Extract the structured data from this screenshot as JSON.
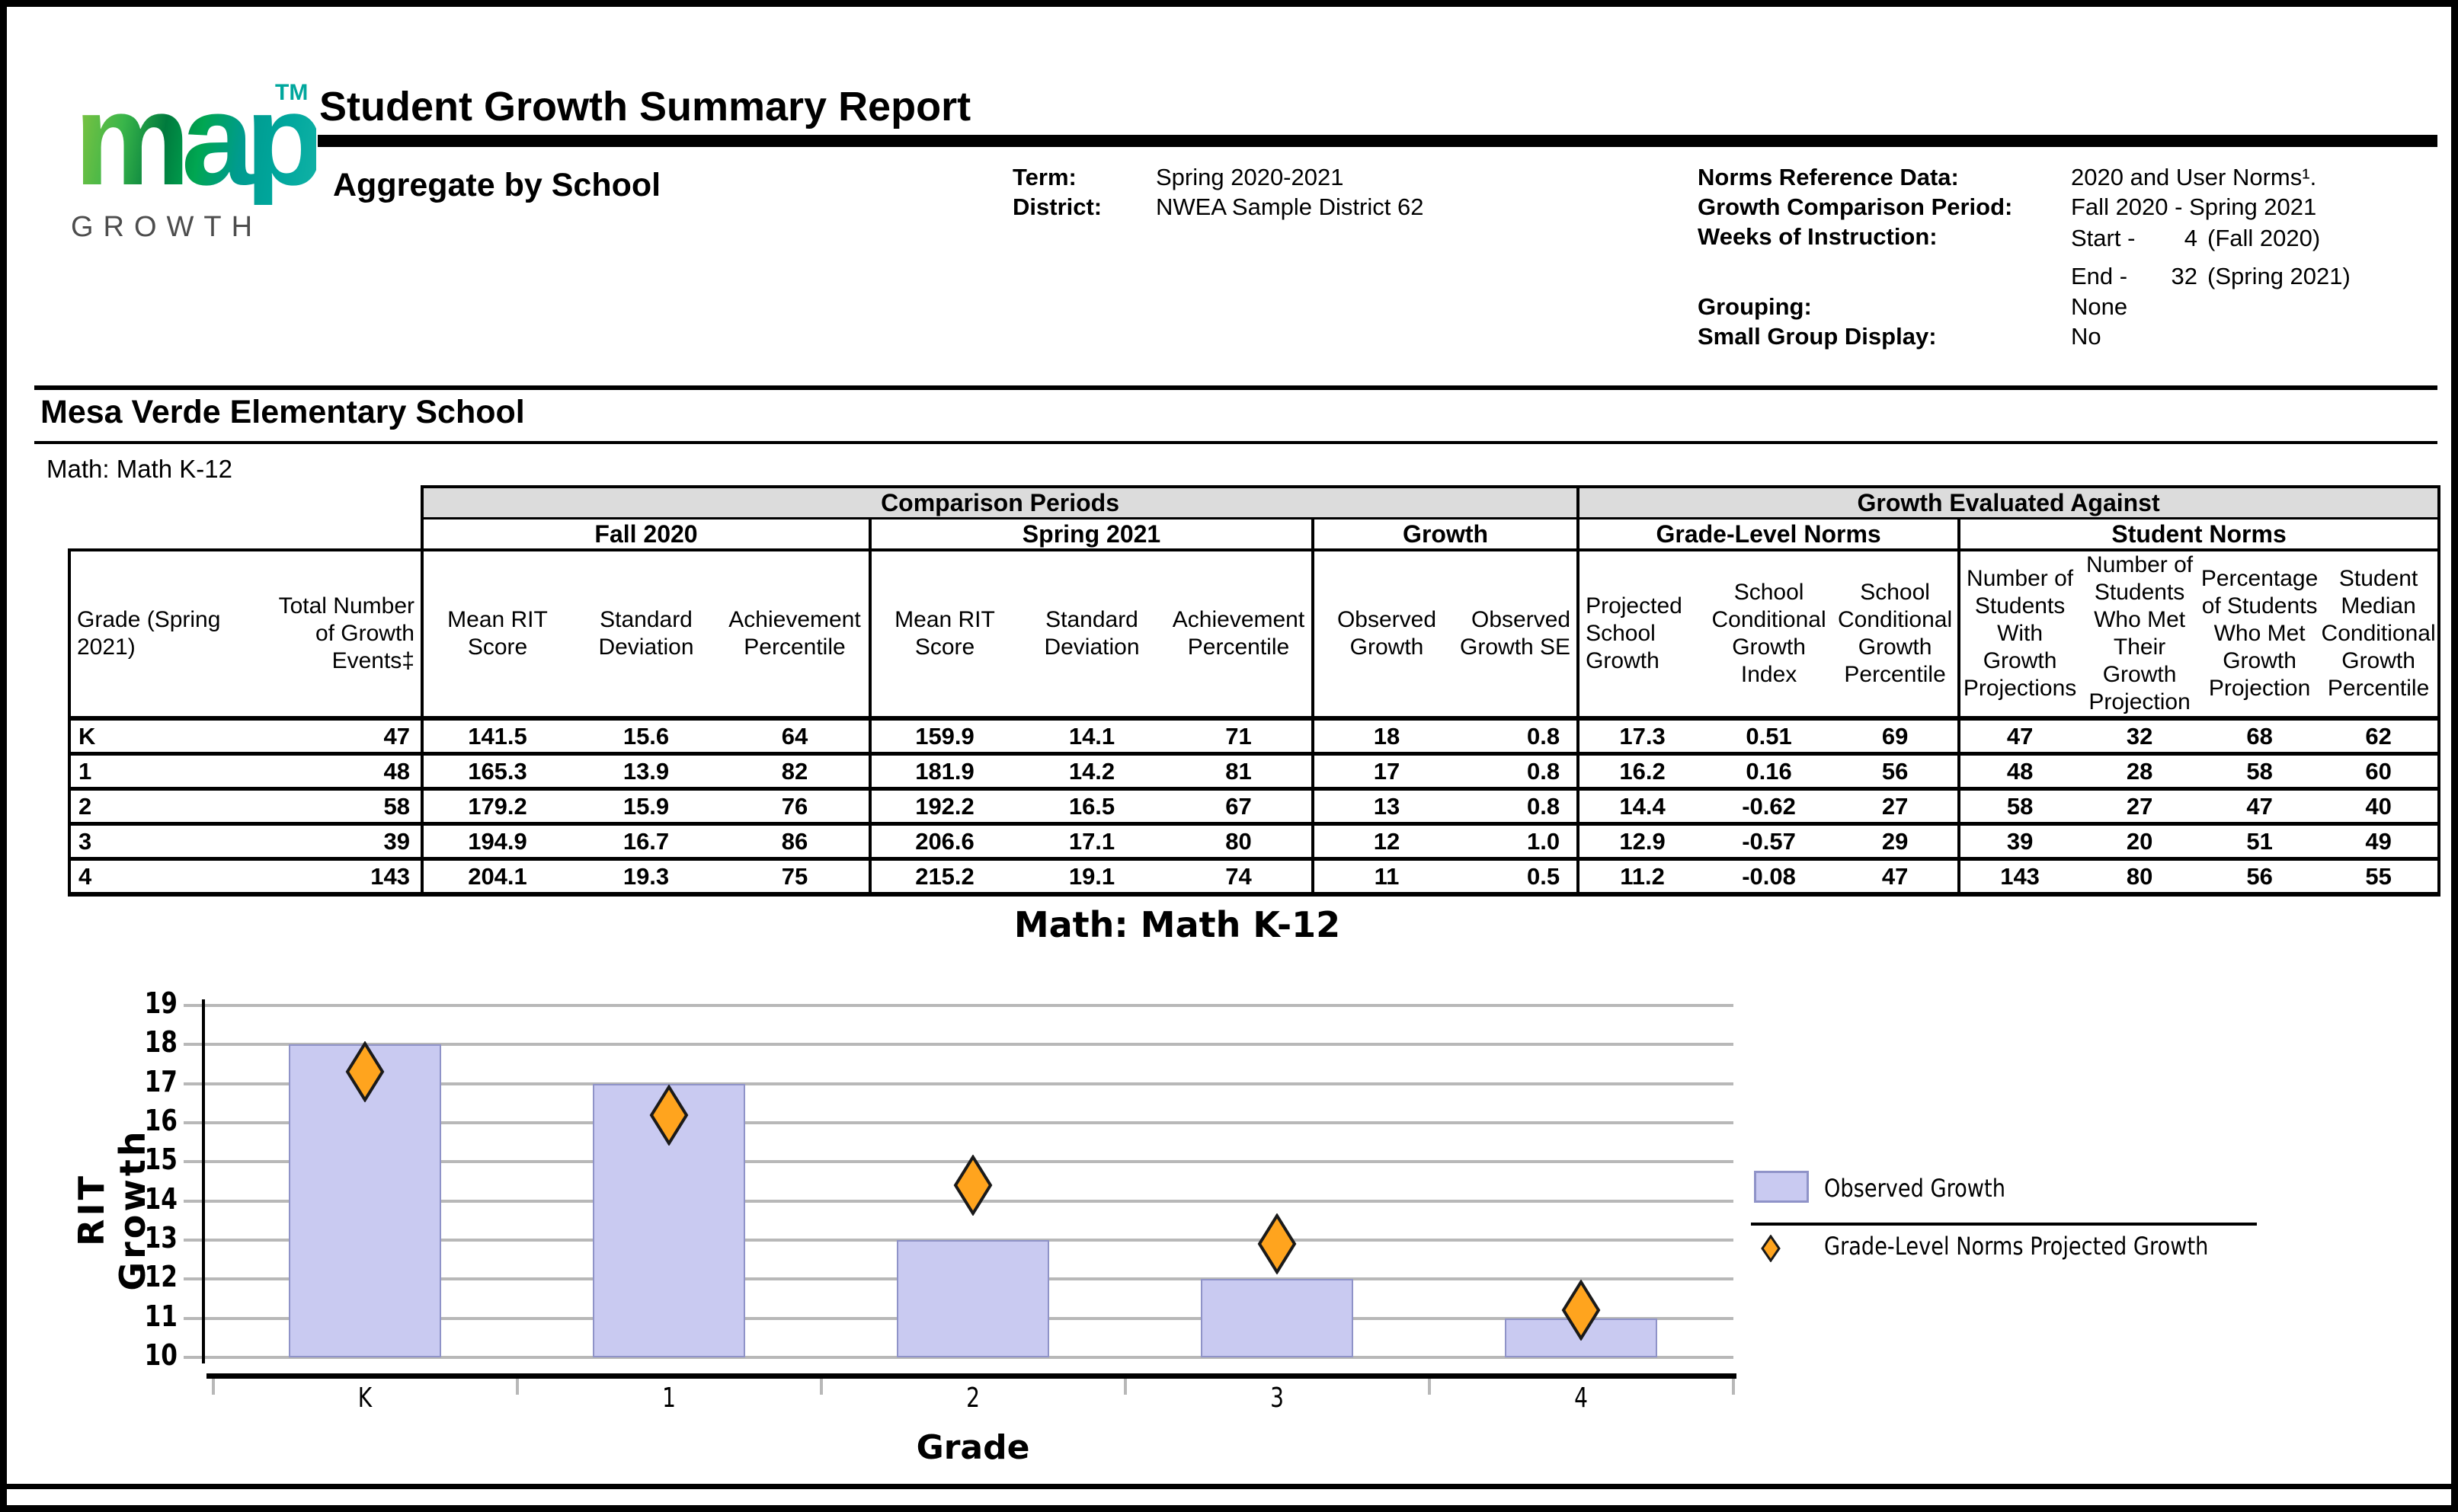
{
  "page": {
    "title": "Student Growth Summary Report",
    "subtitle": "Aggregate by School"
  },
  "logo": {
    "word": "map",
    "tm": "TM",
    "sub": "GROWTH"
  },
  "meta_left": [
    {
      "label": "Term:",
      "value": "Spring 2020-2021"
    },
    {
      "label": "District:",
      "value": "NWEA Sample District 62"
    }
  ],
  "meta_right": {
    "norms_label": "Norms Reference Data:",
    "norms_value": "2020 and User Norms¹.",
    "gcp_label": "Growth Comparison Period:",
    "gcp_value": "Fall 2020 - Spring 2021",
    "woi_label": "Weeks of Instruction:",
    "woi_start_prefix": "Start -",
    "woi_start_num": "4",
    "woi_start_term": "(Fall 2020)",
    "woi_end_prefix": "End -",
    "woi_end_num": "32",
    "woi_end_term": "(Spring 2021)",
    "grouping_label": "Grouping:",
    "grouping_value": "None",
    "sgd_label": "Small Group Display:",
    "sgd_value": "No"
  },
  "school": {
    "name": "Mesa Verde Elementary School",
    "course": "Math: Math K-12"
  },
  "table": {
    "group_headers": [
      "Comparison Periods",
      "Growth Evaluated Against"
    ],
    "section_headers": [
      "Fall 2020",
      "Spring 2021",
      "Growth",
      "Grade-Level Norms",
      "Student Norms"
    ],
    "column_headers": {
      "grade": "Grade (Spring 2021)",
      "total": "Total Number of Growth Events‡",
      "fall": [
        "Mean RIT Score",
        "Standard Deviation",
        "Achievement Percentile"
      ],
      "spring": [
        "Mean RIT Score",
        "Standard Deviation",
        "Achievement Percentile"
      ],
      "growth": [
        "Observed Growth",
        "Observed Growth SE"
      ],
      "grade_level_norms": [
        "Projected School Growth",
        "School Conditional Growth Index",
        "School Conditional Growth Percentile"
      ],
      "student_norms": [
        "Number of Students With Growth Projections",
        "Number of Students Who Met Their Growth Projection",
        "Percentage of Students Who Met Growth Projection",
        "Student Median Conditional Growth Percentile"
      ]
    },
    "rows": [
      {
        "grade": "K",
        "total": "47",
        "fall": [
          "141.5",
          "15.6",
          "64"
        ],
        "spring": [
          "159.9",
          "14.1",
          "71"
        ],
        "growth": [
          "18",
          "0.8"
        ],
        "grade_level_norms": [
          "17.3",
          "0.51",
          "69"
        ],
        "student_norms": [
          "47",
          "32",
          "68",
          "62"
        ]
      },
      {
        "grade": "1",
        "total": "48",
        "fall": [
          "165.3",
          "13.9",
          "82"
        ],
        "spring": [
          "181.9",
          "14.2",
          "81"
        ],
        "growth": [
          "17",
          "0.8"
        ],
        "grade_level_norms": [
          "16.2",
          "0.16",
          "56"
        ],
        "student_norms": [
          "48",
          "28",
          "58",
          "60"
        ]
      },
      {
        "grade": "2",
        "total": "58",
        "fall": [
          "179.2",
          "15.9",
          "76"
        ],
        "spring": [
          "192.2",
          "16.5",
          "67"
        ],
        "growth": [
          "13",
          "0.8"
        ],
        "grade_level_norms": [
          "14.4",
          "-0.62",
          "27"
        ],
        "student_norms": [
          "58",
          "27",
          "47",
          "40"
        ]
      },
      {
        "grade": "3",
        "total": "39",
        "fall": [
          "194.9",
          "16.7",
          "86"
        ],
        "spring": [
          "206.6",
          "17.1",
          "80"
        ],
        "growth": [
          "12",
          "1.0"
        ],
        "grade_level_norms": [
          "12.9",
          "-0.57",
          "29"
        ],
        "student_norms": [
          "39",
          "20",
          "51",
          "49"
        ]
      },
      {
        "grade": "4",
        "total": "143",
        "fall": [
          "204.1",
          "19.3",
          "75"
        ],
        "spring": [
          "215.2",
          "19.1",
          "74"
        ],
        "growth": [
          "11",
          "0.5"
        ],
        "grade_level_norms": [
          "11.2",
          "-0.08",
          "47"
        ],
        "student_norms": [
          "143",
          "80",
          "56",
          "55"
        ]
      }
    ]
  },
  "chart_data": {
    "type": "bar",
    "title": "Math: Math K-12",
    "xlabel": "Grade",
    "ylabel": "RIT Growth",
    "categories": [
      "K",
      "1",
      "2",
      "3",
      "4"
    ],
    "series": [
      {
        "name": "Observed Growth",
        "type": "bar",
        "values": [
          18,
          17,
          13,
          12,
          11
        ]
      },
      {
        "name": "Grade-Level Norms Projected Growth",
        "type": "diamond",
        "values": [
          17.3,
          16.2,
          14.4,
          12.9,
          11.2
        ]
      }
    ],
    "ylim": [
      10,
      19
    ],
    "ytick_step": 1,
    "grid": true,
    "legend_position": "right"
  },
  "colors": {
    "bar_fill": "#c9caf1",
    "bar_border": "#8f93c8",
    "diamond_fill": "#ffa41e",
    "diamond_border": "#1a1a1a",
    "table_header_bg": "#dcdcdc",
    "grid_line": "#b8b8b8",
    "logo_green": "#8cc63f",
    "logo_teal": "#00a79d"
  }
}
